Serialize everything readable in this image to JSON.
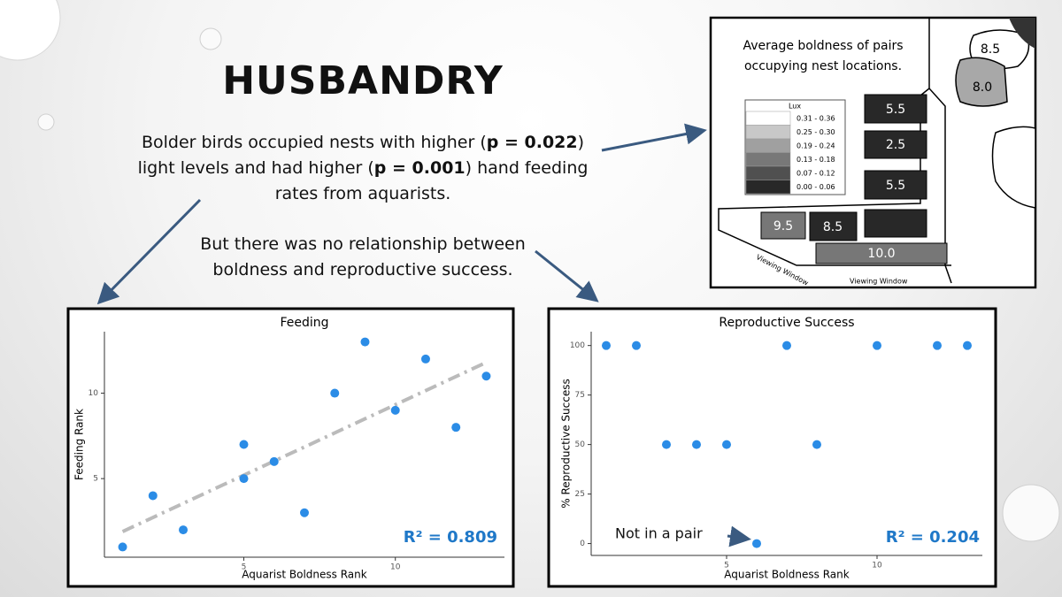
{
  "title": "HUSBANDRY",
  "paragraph_1": [
    "Bolder birds occupied nests with higher (",
    "p = 0.022",
    ") light levels and had higher (",
    "p = 0.001",
    ") hand feeding rates from aquarists."
  ],
  "paragraph_2": "But there was no relationship between boldness and reproductive success.",
  "diagram": {
    "title": [
      "Average boldness of pairs",
      "occupying nest locations."
    ],
    "legend_title": "Lux",
    "legend": [
      {
        "label": "0.31 - 0.36",
        "color": "#ffffff"
      },
      {
        "label": "0.25 - 0.30",
        "color": "#c8c8c8"
      },
      {
        "label": "0.19 - 0.24",
        "color": "#a0a0a0"
      },
      {
        "label": "0.13 - 0.18",
        "color": "#787878"
      },
      {
        "label": "0.07 - 0.12",
        "color": "#505050"
      },
      {
        "label": "0.00 - 0.06",
        "color": "#282828"
      }
    ],
    "nests": [
      "8.5",
      "8.0",
      "5.5",
      "2.5",
      "5.5",
      "9.5",
      "8.5",
      "10.0"
    ],
    "windows": [
      "Viewing Window",
      "Viewing Window"
    ]
  },
  "chart_data": [
    {
      "type": "scatter",
      "title": "Feeding",
      "x_label": "Aquarist Boldness Rank",
      "y_label": "Feeding Rank",
      "color": "#2b8ce6",
      "x": [
        1,
        2,
        3,
        5,
        5,
        6,
        7,
        8,
        9,
        10,
        11,
        12,
        13
      ],
      "values": [
        1,
        4,
        2,
        7,
        5,
        6,
        3,
        10,
        13,
        9,
        12,
        8,
        11
      ],
      "xlim": [
        0.4,
        13.6
      ],
      "ylim": [
        0.4,
        13.6
      ],
      "xticks": [
        5,
        10
      ],
      "yticks": [
        5,
        10
      ],
      "trend": {
        "x": [
          1,
          13
        ],
        "y": [
          1.9,
          11.8
        ],
        "color": "#bbbbbb"
      },
      "annotations": [
        "R² = 0.809"
      ]
    },
    {
      "type": "scatter",
      "title": "Reproductive Success",
      "x_label": "Aquarist Boldness Rank",
      "y_label": "% Reproductive Success",
      "color": "#2b8ce6",
      "x": [
        1,
        2,
        3,
        4,
        5,
        6,
        7,
        8,
        10,
        12,
        13
      ],
      "values": [
        100,
        100,
        50,
        50,
        50,
        0,
        100,
        50,
        100,
        100,
        100
      ],
      "xlim": [
        0.5,
        13.5
      ],
      "ylim": [
        -6,
        107
      ],
      "xticks": [
        5,
        10
      ],
      "yticks": [
        0,
        25,
        50,
        75,
        100
      ],
      "annotations": [
        "Not in a pair",
        "R² = 0.204"
      ]
    }
  ]
}
